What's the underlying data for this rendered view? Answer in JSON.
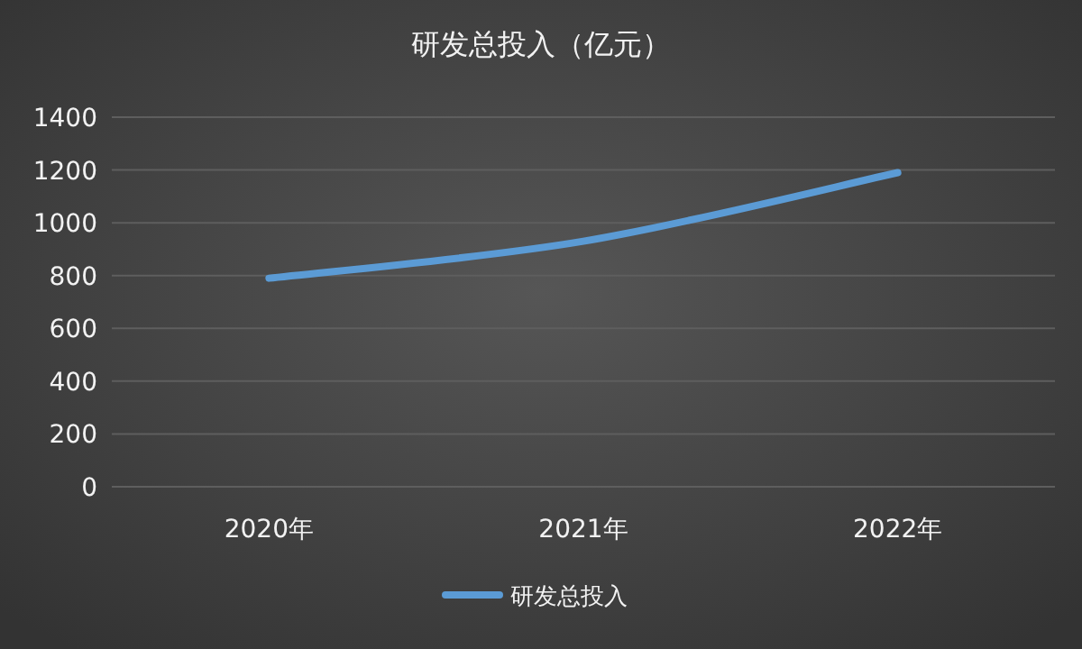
{
  "chart_data": {
    "type": "line",
    "title": "研发总投入（亿元）",
    "categories": [
      "2020年",
      "2021年",
      "2022年"
    ],
    "series": [
      {
        "name": "研发总投入",
        "color": "#5b9bd5",
        "values": [
          790,
          930,
          1190
        ]
      }
    ],
    "ylim": [
      0,
      1400
    ],
    "yticks": [
      0,
      200,
      400,
      600,
      800,
      1000,
      1200,
      1400
    ],
    "grid": "y",
    "legend": "bottom",
    "marker": "none",
    "line_style": "solid"
  }
}
